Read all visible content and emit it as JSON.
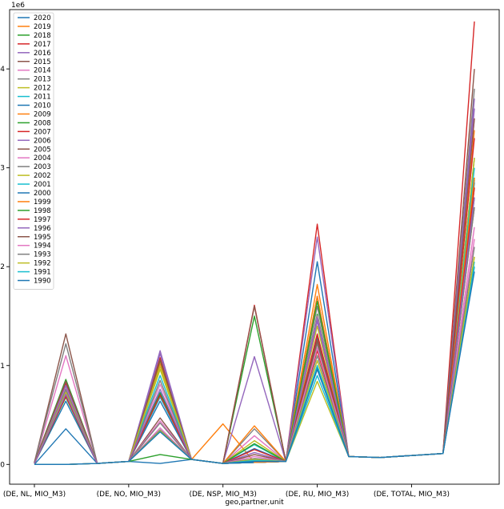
{
  "chart_data": {
    "type": "line",
    "title": "",
    "xlabel": "geo,partner,unit",
    "ylabel": "",
    "y_offset_label": "1e6",
    "ylim": [
      -200000,
      4600000
    ],
    "yticks": [
      0,
      1000000,
      2000000,
      3000000,
      4000000
    ],
    "ytick_labels": [
      "0",
      "1",
      "2",
      "3",
      "4"
    ],
    "grid": false,
    "legend_position": "upper-left",
    "categories": [
      "(DE, NL, MIO_M3)",
      "(DE, NO, MIO_M3)",
      "(DE, NSP, MIO_M3)",
      "(DE, RU, MIO_M3)",
      "(DE, TOTAL, MIO_M3)"
    ],
    "x": [
      0,
      1,
      2,
      3,
      4,
      5,
      6,
      7,
      8,
      9,
      10,
      11,
      12,
      13,
      14
    ],
    "xtick_positions": [
      0,
      3,
      6,
      9,
      12
    ],
    "series": [
      {
        "name": "2020",
        "color": "#1f77b4",
        "values": [
          0,
          360000,
          10000,
          30000,
          10000,
          50000,
          10000,
          20000,
          30000,
          2050000,
          80000,
          70000,
          90000,
          110000,
          2880000
        ]
      },
      {
        "name": "2019",
        "color": "#ff7f0e",
        "values": [
          10000,
          720000,
          10000,
          30000,
          1020000,
          50000,
          10000,
          20000,
          30000,
          1820000,
          80000,
          70000,
          90000,
          110000,
          3380000
        ]
      },
      {
        "name": "2018",
        "color": "#2ca02c",
        "values": [
          0,
          0,
          10000,
          30000,
          100000,
          50000,
          10000,
          20000,
          30000,
          1520000,
          80000,
          70000,
          90000,
          110000,
          3100000
        ]
      },
      {
        "name": "2017",
        "color": "#d62728",
        "values": [
          20000,
          810000,
          10000,
          30000,
          1080000,
          50000,
          10000,
          20000,
          30000,
          2430000,
          80000,
          70000,
          90000,
          110000,
          4480000
        ]
      },
      {
        "name": "2016",
        "color": "#9467bd",
        "values": [
          10000,
          750000,
          10000,
          30000,
          1150000,
          50000,
          10000,
          20000,
          30000,
          2300000,
          80000,
          70000,
          90000,
          110000,
          3600000
        ]
      },
      {
        "name": "2015",
        "color": "#8c564b",
        "values": [
          20000,
          1320000,
          10000,
          30000,
          470000,
          50000,
          10000,
          20000,
          30000,
          1700000,
          80000,
          70000,
          90000,
          110000,
          4000000
        ]
      },
      {
        "name": "2014",
        "color": "#e377c2",
        "values": [
          10000,
          1100000,
          10000,
          30000,
          440000,
          50000,
          10000,
          20000,
          30000,
          1500000,
          80000,
          70000,
          90000,
          110000,
          3500000
        ]
      },
      {
        "name": "2013",
        "color": "#7f7f7f",
        "values": [
          20000,
          1220000,
          10000,
          30000,
          420000,
          50000,
          10000,
          20000,
          30000,
          1600000,
          80000,
          70000,
          90000,
          110000,
          3800000
        ]
      },
      {
        "name": "2012",
        "color": "#bcbd22",
        "values": [
          10000,
          830000,
          10000,
          30000,
          960000,
          50000,
          10000,
          20000,
          30000,
          1400000,
          80000,
          70000,
          90000,
          110000,
          3100000
        ]
      },
      {
        "name": "2011",
        "color": "#17becf",
        "values": [
          10000,
          780000,
          10000,
          30000,
          900000,
          50000,
          10000,
          20000,
          30000,
          1300000,
          80000,
          70000,
          90000,
          110000,
          3000000
        ]
      },
      {
        "name": "2010",
        "color": "#1f77b4",
        "values": [
          10000,
          690000,
          10000,
          30000,
          730000,
          50000,
          10000,
          20000,
          30000,
          1280000,
          80000,
          70000,
          90000,
          110000,
          2850000
        ]
      },
      {
        "name": "2009",
        "color": "#ff7f0e",
        "values": [
          10000,
          700000,
          10000,
          30000,
          700000,
          50000,
          410000,
          20000,
          30000,
          1250000,
          80000,
          70000,
          90000,
          110000,
          2800000
        ]
      },
      {
        "name": "2008",
        "color": "#2ca02c",
        "values": [
          20000,
          860000,
          10000,
          30000,
          1050000,
          50000,
          10000,
          1500000,
          30000,
          1180000,
          80000,
          70000,
          90000,
          110000,
          2900000
        ]
      },
      {
        "name": "2007",
        "color": "#d62728",
        "values": [
          20000,
          820000,
          10000,
          30000,
          1060000,
          50000,
          10000,
          1610000,
          30000,
          1150000,
          80000,
          70000,
          90000,
          110000,
          3300000
        ]
      },
      {
        "name": "2006",
        "color": "#9467bd",
        "values": [
          10000,
          800000,
          10000,
          30000,
          1120000,
          50000,
          10000,
          1090000,
          30000,
          1450000,
          80000,
          70000,
          90000,
          110000,
          3700000
        ]
      },
      {
        "name": "2005",
        "color": "#8c564b",
        "values": [
          20000,
          840000,
          10000,
          30000,
          1060000,
          50000,
          10000,
          1600000,
          30000,
          1300000,
          80000,
          70000,
          90000,
          110000,
          2600000
        ]
      },
      {
        "name": "2004",
        "color": "#e377c2",
        "values": [
          10000,
          770000,
          10000,
          30000,
          810000,
          50000,
          10000,
          290000,
          30000,
          1230000,
          80000,
          70000,
          90000,
          110000,
          2400000
        ]
      },
      {
        "name": "2003",
        "color": "#7f7f7f",
        "values": [
          10000,
          760000,
          10000,
          30000,
          850000,
          50000,
          10000,
          360000,
          30000,
          1220000,
          80000,
          70000,
          90000,
          110000,
          2600000
        ]
      },
      {
        "name": "2002",
        "color": "#bcbd22",
        "values": [
          10000,
          730000,
          10000,
          30000,
          990000,
          50000,
          10000,
          240000,
          30000,
          840000,
          80000,
          70000,
          90000,
          110000,
          2100000
        ]
      },
      {
        "name": "2001",
        "color": "#17becf",
        "values": [
          10000,
          700000,
          10000,
          30000,
          680000,
          50000,
          10000,
          200000,
          30000,
          900000,
          80000,
          70000,
          90000,
          110000,
          2050000
        ]
      },
      {
        "name": "2000",
        "color": "#1f77b4",
        "values": [
          10000,
          640000,
          10000,
          30000,
          640000,
          50000,
          10000,
          160000,
          30000,
          980000,
          80000,
          70000,
          90000,
          110000,
          2000000
        ]
      },
      {
        "name": "1999",
        "color": "#ff7f0e",
        "values": [
          10000,
          700000,
          10000,
          30000,
          700000,
          50000,
          10000,
          390000,
          30000,
          1700000,
          80000,
          70000,
          90000,
          110000,
          2900000
        ]
      },
      {
        "name": "1998",
        "color": "#2ca02c",
        "values": [
          10000,
          680000,
          10000,
          30000,
          720000,
          50000,
          10000,
          210000,
          30000,
          1650000,
          80000,
          70000,
          90000,
          110000,
          2700000
        ]
      },
      {
        "name": "1997",
        "color": "#d62728",
        "values": [
          10000,
          690000,
          10000,
          30000,
          700000,
          50000,
          10000,
          150000,
          30000,
          1320000,
          80000,
          70000,
          90000,
          110000,
          2800000
        ]
      },
      {
        "name": "1996",
        "color": "#9467bd",
        "values": [
          10000,
          710000,
          10000,
          30000,
          760000,
          50000,
          10000,
          120000,
          30000,
          1480000,
          80000,
          70000,
          90000,
          110000,
          2700000
        ]
      },
      {
        "name": "1995",
        "color": "#8c564b",
        "values": [
          0,
          0,
          10000,
          30000,
          340000,
          50000,
          10000,
          100000,
          30000,
          1250000,
          80000,
          70000,
          90000,
          110000,
          3500000
        ]
      },
      {
        "name": "1994",
        "color": "#e377c2",
        "values": [
          0,
          0,
          10000,
          30000,
          370000,
          50000,
          10000,
          80000,
          30000,
          1180000,
          80000,
          70000,
          90000,
          110000,
          2280000
        ]
      },
      {
        "name": "1993",
        "color": "#7f7f7f",
        "values": [
          0,
          0,
          10000,
          30000,
          350000,
          50000,
          10000,
          60000,
          30000,
          1100000,
          80000,
          70000,
          90000,
          110000,
          2200000
        ]
      },
      {
        "name": "1992",
        "color": "#bcbd22",
        "values": [
          0,
          0,
          10000,
          30000,
          340000,
          50000,
          10000,
          50000,
          30000,
          1050000,
          80000,
          70000,
          90000,
          110000,
          2100000
        ]
      },
      {
        "name": "1991",
        "color": "#17becf",
        "values": [
          0,
          0,
          10000,
          30000,
          330000,
          50000,
          10000,
          40000,
          30000,
          1000000,
          80000,
          70000,
          90000,
          110000,
          2000000
        ]
      },
      {
        "name": "1990",
        "color": "#1f77b4",
        "values": [
          0,
          0,
          10000,
          30000,
          330000,
          50000,
          10000,
          30000,
          30000,
          960000,
          80000,
          70000,
          90000,
          110000,
          1950000
        ]
      }
    ]
  }
}
